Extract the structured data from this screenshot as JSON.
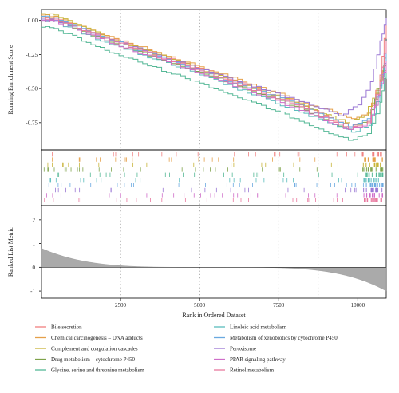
{
  "chart_data": {
    "type": "line",
    "title": "",
    "x_label": "Rank in Ordered Dataset",
    "x_range": [
      1,
      10900
    ],
    "x_ticks": [
      2500,
      5000,
      7500,
      10000
    ],
    "x_tick_labels": [
      "2500",
      "5000",
      "7500",
      "10000"
    ],
    "vertical_grid_x": [
      1250,
      2500,
      3750,
      5000,
      6250,
      7500,
      8750,
      10000
    ],
    "legend_position": "bottom",
    "enrichment_panel": {
      "y_label": "Running Enrichment Score",
      "y_range": [
        -0.95,
        0.08
      ],
      "y_ticks": [
        0.0,
        -0.25,
        -0.5,
        -0.75
      ],
      "y_tick_labels": [
        "0.00",
        "-0.25",
        "-0.50",
        "-0.75"
      ]
    },
    "ranked_metric_panel": {
      "y_label": "Ranked List Metric",
      "y_range": [
        -1.3,
        2.6
      ],
      "y_ticks": [
        2,
        1,
        0,
        -1
      ],
      "y_tick_labels": [
        "2",
        "1",
        "0",
        "-1"
      ],
      "start_value": 0.8,
      "zero_crossing_rank": 5450,
      "end_value": -1.0
    },
    "series": [
      {
        "name": "Bile secretion",
        "color": "#f08080",
        "x": [
          1,
          400,
          2000,
          5000,
          8000,
          9700,
          10300,
          10700,
          10900
        ],
        "y": [
          0.03,
          0.02,
          -0.12,
          -0.35,
          -0.6,
          -0.78,
          -0.75,
          -0.4,
          0.0
        ]
      },
      {
        "name": "Chemical carcinogenesis – DNA adducts",
        "color": "#e5a04a",
        "x": [
          1,
          400,
          2000,
          5000,
          8000,
          9800,
          10300,
          10700,
          10900
        ],
        "y": [
          0.04,
          0.03,
          -0.11,
          -0.34,
          -0.58,
          -0.72,
          -0.68,
          -0.45,
          -0.2
        ]
      },
      {
        "name": "Complement and coagulation cascades",
        "color": "#c8b43a",
        "x": [
          1,
          400,
          2000,
          5000,
          8000,
          9600,
          10200,
          10600,
          10900
        ],
        "y": [
          0.05,
          0.04,
          -0.12,
          -0.36,
          -0.6,
          -0.75,
          -0.7,
          -0.5,
          -0.3
        ]
      },
      {
        "name": "Drug metabolism – cytochrome P450",
        "color": "#7ea24a",
        "x": [
          1,
          400,
          2000,
          5000,
          8000,
          9700,
          10300,
          10650,
          10900
        ],
        "y": [
          0.02,
          0.01,
          -0.15,
          -0.38,
          -0.63,
          -0.8,
          -0.74,
          -0.5,
          -0.25
        ]
      },
      {
        "name": "Glycine, serine and threonine metabolism",
        "color": "#55b896",
        "x": [
          1,
          400,
          2000,
          5000,
          8000,
          9700,
          10300,
          10700,
          10900
        ],
        "y": [
          -0.05,
          -0.06,
          -0.22,
          -0.46,
          -0.72,
          -0.88,
          -0.83,
          -0.6,
          -0.35
        ]
      },
      {
        "name": "Linoleic acid metabolism",
        "color": "#5bbcbc",
        "x": [
          1,
          400,
          2000,
          5000,
          8000,
          9800,
          10350,
          10700,
          10900
        ],
        "y": [
          0.0,
          -0.01,
          -0.16,
          -0.4,
          -0.66,
          -0.82,
          -0.77,
          -0.5,
          -0.25
        ]
      },
      {
        "name": "Metabolism of xenobiotics by cytochrome P450",
        "color": "#6aa9e0",
        "x": [
          1,
          400,
          2000,
          5000,
          8000,
          9700,
          10300,
          10700,
          10900
        ],
        "y": [
          0.03,
          0.02,
          -0.13,
          -0.37,
          -0.61,
          -0.78,
          -0.72,
          -0.48,
          -0.22
        ]
      },
      {
        "name": "Peroxisome",
        "color": "#9a77d4",
        "x": [
          1,
          400,
          2000,
          5000,
          8000,
          9400,
          10000,
          10400,
          10700,
          10900
        ],
        "y": [
          0.01,
          0.0,
          -0.13,
          -0.36,
          -0.58,
          -0.7,
          -0.62,
          -0.45,
          -0.15,
          0.02
        ]
      },
      {
        "name": "PPAR signaling pathway",
        "color": "#cf6ec9",
        "x": [
          1,
          400,
          2000,
          5000,
          8000,
          9700,
          10300,
          10650,
          10900
        ],
        "y": [
          0.0,
          -0.01,
          -0.15,
          -0.39,
          -0.64,
          -0.8,
          -0.76,
          -0.55,
          -0.3
        ]
      },
      {
        "name": "Retinol metabolism",
        "color": "#e8789e",
        "x": [
          1,
          400,
          2000,
          5000,
          8000,
          9700,
          10300,
          10700,
          10900
        ],
        "y": [
          0.02,
          0.01,
          -0.13,
          -0.37,
          -0.62,
          -0.79,
          -0.74,
          -0.45,
          -0.15
        ]
      }
    ]
  }
}
